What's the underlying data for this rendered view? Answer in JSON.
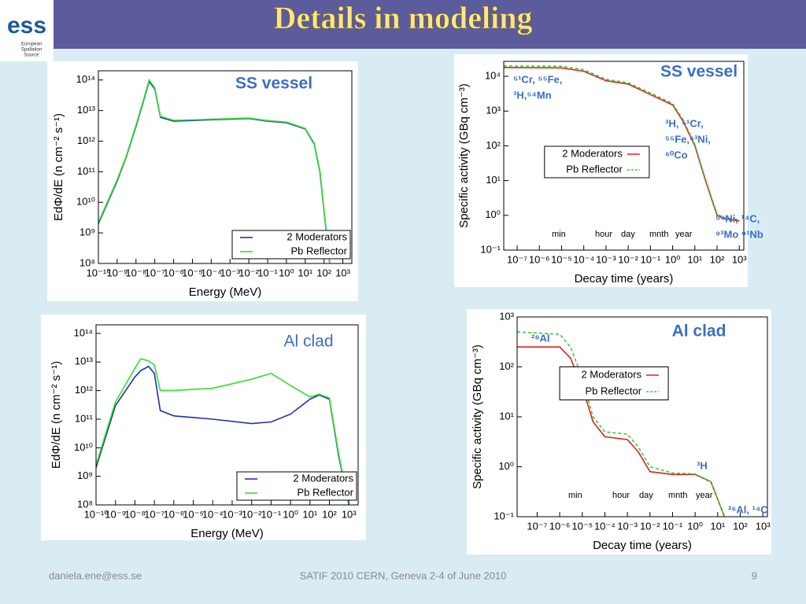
{
  "header": {
    "title": "Details in modeling",
    "logo": "ess",
    "logo_sub": [
      "European",
      "Spallation",
      "Source"
    ]
  },
  "footer": {
    "email": "daniela.ene@ess.se",
    "event": "SATIF 2010 CERN, Geneva 2-4 of June 2010",
    "page": "9"
  },
  "chart_data": [
    {
      "type": "line",
      "title": "SS vessel",
      "xlabel": "Energy (MeV)",
      "ylabel": "EdΦ/dE (n cm⁻² s⁻¹)",
      "xlog": true,
      "ylog": true,
      "legend": "lower right",
      "xlim": [
        1e-10,
        3000
      ],
      "ylim": [
        100000000.0,
        200000000000000.0
      ],
      "xticks": [
        {
          "value": 1e-10,
          "label": "10⁻¹⁰"
        },
        {
          "value": 1e-09,
          "label": "10⁻⁹"
        },
        {
          "value": 1e-08,
          "label": "10⁻⁸"
        },
        {
          "value": 1e-07,
          "label": "10⁻⁷"
        },
        {
          "value": 1e-06,
          "label": "10⁻⁶"
        },
        {
          "value": 1e-05,
          "label": "10⁻⁵"
        },
        {
          "value": 0.0001,
          "label": "10⁻⁴"
        },
        {
          "value": 0.001,
          "label": "10⁻³"
        },
        {
          "value": 0.01,
          "label": "10⁻²"
        },
        {
          "value": 0.1,
          "label": "10⁻¹"
        },
        {
          "value": 1,
          "label": "10⁰"
        },
        {
          "value": 10,
          "label": "10¹"
        },
        {
          "value": 100,
          "label": "10²"
        },
        {
          "value": 1000,
          "label": "10³"
        }
      ],
      "yticks": [
        {
          "value": 100000000.0,
          "label": "10⁸"
        },
        {
          "value": 1000000000.0,
          "label": "10⁹"
        },
        {
          "value": 10000000000.0,
          "label": "10¹⁰"
        },
        {
          "value": 100000000000.0,
          "label": "10¹¹"
        },
        {
          "value": 1000000000000.0,
          "label": "10¹²"
        },
        {
          "value": 10000000000000.0,
          "label": "10¹³"
        },
        {
          "value": 100000000000000.0,
          "label": "10¹⁴"
        }
      ],
      "series": [
        {
          "name": "2 Moderators",
          "color": "#2030b0",
          "linestyle": "solid",
          "x": [
            1e-10,
            1e-09,
            3e-09,
            1e-08,
            3e-08,
            5e-08,
            1e-07,
            2e-07,
            1e-06,
            0.0001,
            0.01,
            0.1,
            1,
            10,
            30,
            60,
            100,
            200
          ],
          "values": [
            2000000000.0,
            50000000000.0,
            300000000000.0,
            3000000000000.0,
            30000000000000.0,
            90000000000000.0,
            50000000000000.0,
            6000000000000.0,
            4500000000000.0,
            5000000000000.0,
            5500000000000.0,
            4500000000000.0,
            4000000000000.0,
            2500000000000.0,
            800000000000.0,
            100000000000.0,
            5000000000.0,
            100000000.0
          ]
        },
        {
          "name": "Pb Reflector",
          "color": "#30e030",
          "linestyle": "solid",
          "x": [
            1e-10,
            1e-09,
            3e-09,
            1e-08,
            3e-08,
            5e-08,
            1e-07,
            2e-07,
            1e-06,
            0.0001,
            0.01,
            0.1,
            1,
            10,
            30,
            60,
            100,
            200
          ],
          "values": [
            2200000000.0,
            55000000000.0,
            320000000000.0,
            3300000000000.0,
            33000000000000.0,
            100000000000000.0,
            55000000000000.0,
            6500000000000.0,
            4800000000000.0,
            5200000000000.0,
            5700000000000.0,
            4700000000000.0,
            4200000000000.0,
            2600000000000.0,
            850000000000.0,
            110000000000.0,
            5500000000.0,
            100000000.0
          ]
        }
      ]
    },
    {
      "type": "line",
      "title": "Al clad",
      "xlabel": "Energy (MeV)",
      "ylabel": "EdΦ/dE (n cm⁻² s⁻¹)",
      "xlog": true,
      "ylog": true,
      "legend": "lower right",
      "xlim": [
        1e-10,
        3000
      ],
      "ylim": [
        100000000.0,
        200000000000000.0
      ],
      "xticks": [
        {
          "value": 1e-10,
          "label": "10⁻¹⁰"
        },
        {
          "value": 1e-09,
          "label": "10⁻⁹"
        },
        {
          "value": 1e-08,
          "label": "10⁻⁸"
        },
        {
          "value": 1e-07,
          "label": "10⁻⁷"
        },
        {
          "value": 1e-06,
          "label": "10⁻⁶"
        },
        {
          "value": 1e-05,
          "label": "10⁻⁵"
        },
        {
          "value": 0.0001,
          "label": "10⁻⁴"
        },
        {
          "value": 0.001,
          "label": "10⁻³"
        },
        {
          "value": 0.01,
          "label": "10⁻²"
        },
        {
          "value": 0.1,
          "label": "10⁻¹"
        },
        {
          "value": 1,
          "label": "10⁰"
        },
        {
          "value": 10,
          "label": "10¹"
        },
        {
          "value": 100,
          "label": "10²"
        },
        {
          "value": 1000,
          "label": "10³"
        }
      ],
      "yticks": [
        {
          "value": 100000000.0,
          "label": "10⁸"
        },
        {
          "value": 1000000000.0,
          "label": "10⁹"
        },
        {
          "value": 10000000000.0,
          "label": "10¹⁰"
        },
        {
          "value": 100000000000.0,
          "label": "10¹¹"
        },
        {
          "value": 1000000000000.0,
          "label": "10¹²"
        },
        {
          "value": 10000000000000.0,
          "label": "10¹³"
        },
        {
          "value": 100000000000000.0,
          "label": "10¹⁴"
        }
      ],
      "series": [
        {
          "name": "2 Moderators",
          "color": "#2030b0",
          "linestyle": "solid",
          "x": [
            1e-10,
            1e-09,
            1e-08,
            2e-08,
            5e-08,
            1e-07,
            2e-07,
            1e-06,
            0.0001,
            0.01,
            0.1,
            1,
            10,
            30,
            100,
            300,
            1000
          ],
          "values": [
            2000000000.0,
            300000000000.0,
            3000000000000.0,
            5000000000000.0,
            7000000000000.0,
            4000000000000.0,
            200000000000.0,
            130000000000.0,
            100000000000.0,
            70000000000.0,
            80000000000.0,
            150000000000.0,
            500000000000.0,
            700000000000.0,
            500000000000.0,
            5000000000.0,
            100000000.0
          ]
        },
        {
          "name": "Pb Reflector",
          "color": "#30e030",
          "linestyle": "solid",
          "x": [
            1e-10,
            1e-09,
            1e-08,
            2e-08,
            5e-08,
            1e-07,
            2e-07,
            1e-06,
            0.0001,
            0.01,
            0.1,
            1,
            10,
            30,
            100,
            300,
            1000
          ],
          "values": [
            2500000000.0,
            400000000000.0,
            6000000000000.0,
            13000000000000.0,
            11000000000000.0,
            8000000000000.0,
            1000000000000.0,
            1000000000000.0,
            1200000000000.0,
            2500000000000.0,
            4000000000000.0,
            1500000000000.0,
            600000000000.0,
            750000000000.0,
            550000000000.0,
            6000000000.0,
            100000000.0
          ]
        }
      ]
    },
    {
      "type": "line",
      "title": "SS vessel",
      "xlabel": "Decay time (years)",
      "ylabel": "Specific activity (GBq cm⁻³)",
      "xlog": true,
      "ylog": true,
      "legend": "center left",
      "xlim": [
        2.5e-08,
        1600
      ],
      "ylim": [
        0.1,
        27000
      ],
      "xticks": [
        {
          "value": 1e-07,
          "label": "10⁻⁷"
        },
        {
          "value": 1e-06,
          "label": "10⁻⁶"
        },
        {
          "value": 1e-05,
          "label": "10⁻⁵"
        },
        {
          "value": 0.0001,
          "label": "10⁻⁴"
        },
        {
          "value": 0.001,
          "label": "10⁻³"
        },
        {
          "value": 0.01,
          "label": "10⁻²"
        },
        {
          "value": 0.1,
          "label": "10⁻¹"
        },
        {
          "value": 1,
          "label": "10⁰"
        },
        {
          "value": 10,
          "label": "10¹"
        },
        {
          "value": 100,
          "label": "10²"
        },
        {
          "value": 1000,
          "label": "10³"
        }
      ],
      "yticks": [
        {
          "value": 0.1,
          "label": "10⁻¹"
        },
        {
          "value": 1,
          "label": "10⁰"
        },
        {
          "value": 10,
          "label": "10¹"
        },
        {
          "value": 100,
          "label": "10²"
        },
        {
          "value": 1000,
          "label": "10³"
        },
        {
          "value": 10000,
          "label": "10⁴"
        }
      ],
      "annotations": [
        "⁵¹Cr, ⁵⁵Fe,",
        "³H,⁵⁴Mn",
        "³H, ⁵¹Cr,",
        "⁵⁵Fe,⁶³Ni,",
        "⁶⁰Co",
        "⁵⁹Ni, ¹⁴C,",
        "⁹³Mo ⁹¹Nb",
        "min",
        "hour",
        "day",
        "mnth",
        "year"
      ],
      "series": [
        {
          "name": "2 Moderators",
          "color": "#e02020",
          "linestyle": "solid",
          "x": [
            2.5e-08,
            1e-05,
            0.0001,
            0.001,
            0.01,
            0.1,
            1,
            3,
            10,
            30,
            100,
            200,
            1000
          ],
          "values": [
            18000,
            17500,
            14000,
            7500,
            6000,
            3000,
            1500,
            500,
            100,
            10,
            1,
            0.8,
            0.7
          ]
        },
        {
          "name": "Pb Reflector",
          "color": "#30d030",
          "linestyle": "dashed",
          "x": [
            2.5e-08,
            1e-05,
            0.0001,
            0.001,
            0.01,
            0.1,
            1,
            3,
            10,
            30,
            100,
            200,
            1000
          ],
          "values": [
            20000,
            19500,
            15500,
            8200,
            6500,
            3300,
            1650,
            550,
            110,
            11,
            1.1,
            0.85,
            0.75
          ]
        }
      ]
    },
    {
      "type": "line",
      "title": "Al clad",
      "xlabel": "Decay time (years)",
      "ylabel": "Specific activity (GBq cm⁻³)",
      "xlog": true,
      "ylog": true,
      "legend": "upper left",
      "xlim": [
        1.3e-08,
        1600
      ],
      "ylim": [
        0.1,
        1000
      ],
      "xticks": [
        {
          "value": 1e-07,
          "label": "10⁻⁷"
        },
        {
          "value": 1e-06,
          "label": "10⁻⁶"
        },
        {
          "value": 1e-05,
          "label": "10⁻⁵"
        },
        {
          "value": 0.0001,
          "label": "10⁻⁴"
        },
        {
          "value": 0.001,
          "label": "10⁻³"
        },
        {
          "value": 0.01,
          "label": "10⁻²"
        },
        {
          "value": 0.1,
          "label": "10⁻¹"
        },
        {
          "value": 1,
          "label": "10⁰"
        },
        {
          "value": 10,
          "label": "10¹"
        },
        {
          "value": 100,
          "label": "10²"
        },
        {
          "value": 1000,
          "label": "10³"
        }
      ],
      "yticks": [
        {
          "value": 0.1,
          "label": "10⁻¹"
        },
        {
          "value": 1,
          "label": "10⁰"
        },
        {
          "value": 10,
          "label": "10¹"
        },
        {
          "value": 100,
          "label": "10²"
        },
        {
          "value": 1000,
          "label": "10³"
        }
      ],
      "annotations": [
        "²⁸Al",
        "³H",
        "²⁶Al, ¹⁴C",
        "min",
        "hour",
        "day",
        "mnth",
        "year"
      ],
      "series": [
        {
          "name": "2 Moderators",
          "color": "#e02020",
          "linestyle": "solid",
          "x": [
            1.3e-08,
            1e-06,
            3e-06,
            1e-05,
            3e-05,
            0.0001,
            0.001,
            0.003,
            0.01,
            0.1,
            1,
            5,
            20
          ],
          "values": [
            250,
            250,
            150,
            40,
            8,
            4,
            3.5,
            2,
            0.8,
            0.7,
            0.7,
            0.5,
            0.1
          ]
        },
        {
          "name": "Pb Reflector",
          "color": "#30d030",
          "linestyle": "dashed",
          "x": [
            1.3e-08,
            1e-06,
            3e-06,
            1e-05,
            3e-05,
            0.0001,
            0.001,
            0.003,
            0.01,
            0.1,
            1,
            5,
            20
          ],
          "values": [
            500,
            450,
            250,
            60,
            10,
            5,
            4.5,
            2.5,
            1,
            0.75,
            0.72,
            0.5,
            0.1
          ]
        }
      ]
    }
  ]
}
